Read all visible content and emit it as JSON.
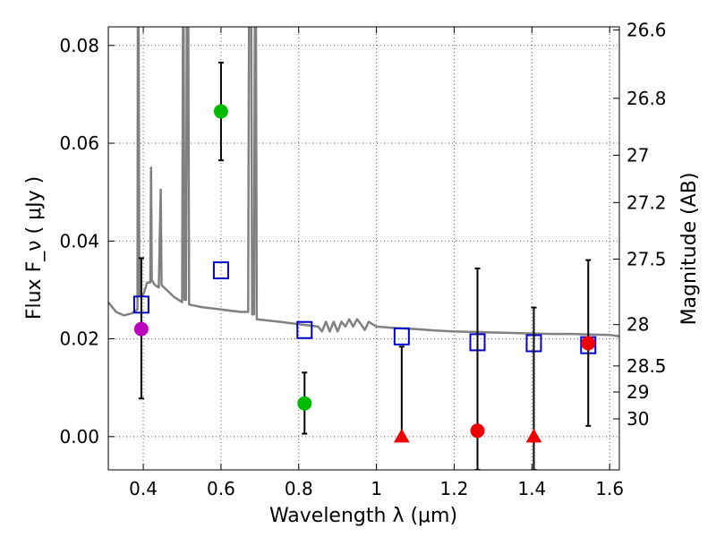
{
  "chart_data": {
    "type": "scatter",
    "xlabel": "Wavelength  λ (μm)",
    "ylabel": "Flux  F_ν  ( μJy )",
    "ylabel_right": "Magnitude (AB)",
    "xlim": [
      0.31,
      1.625
    ],
    "ylim": [
      -0.0068,
      0.0838
    ],
    "xticks": [
      0.4,
      0.6,
      0.8,
      1.0,
      1.2,
      1.4,
      1.6
    ],
    "xtick_labels": [
      "0.4",
      "0.6",
      "0.8",
      "1",
      "1.2",
      "1.4",
      "1.6"
    ],
    "yticks": [
      0.0,
      0.02,
      0.04,
      0.06,
      0.08
    ],
    "ytick_labels": [
      "0.00",
      "0.02",
      "0.04",
      "0.06",
      "0.08"
    ],
    "right_ticks": [
      {
        "label": "26.6",
        "mag": 26.6
      },
      {
        "label": "26.8",
        "mag": 26.8
      },
      {
        "label": "27",
        "mag": 27.0
      },
      {
        "label": "27.2",
        "mag": 27.2
      },
      {
        "label": "27.5",
        "mag": 27.5
      },
      {
        "label": "28",
        "mag": 28.0
      },
      {
        "label": "28.5",
        "mag": 28.5
      },
      {
        "label": "29",
        "mag": 29.0
      },
      {
        "label": "30",
        "mag": 30.0
      }
    ],
    "grid": true,
    "colors": {
      "sed": "#808080",
      "model": "#0000cc",
      "green": "#00bb00",
      "magenta": "#bb00bb",
      "red": "#ee0000",
      "error": "#000000",
      "grid": "#555555"
    },
    "sed_model": [
      [
        0.31,
        0.0275
      ],
      [
        0.33,
        0.0255
      ],
      [
        0.35,
        0.0248
      ],
      [
        0.37,
        0.0252
      ],
      [
        0.385,
        0.026
      ],
      [
        0.386,
        0.0838
      ],
      [
        0.388,
        0.0838
      ],
      [
        0.39,
        0.029
      ],
      [
        0.4,
        0.029
      ],
      [
        0.41,
        0.0315
      ],
      [
        0.418,
        0.0315
      ],
      [
        0.42,
        0.055
      ],
      [
        0.422,
        0.032
      ],
      [
        0.43,
        0.031
      ],
      [
        0.44,
        0.0305
      ],
      [
        0.445,
        0.0505
      ],
      [
        0.447,
        0.031
      ],
      [
        0.46,
        0.03
      ],
      [
        0.48,
        0.0285
      ],
      [
        0.5,
        0.0275
      ],
      [
        0.502,
        0.0838
      ],
      [
        0.504,
        0.0838
      ],
      [
        0.506,
        0.028
      ],
      [
        0.51,
        0.028
      ],
      [
        0.512,
        0.0838
      ],
      [
        0.516,
        0.0838
      ],
      [
        0.518,
        0.027
      ],
      [
        0.55,
        0.0265
      ],
      [
        0.6,
        0.026
      ],
      [
        0.65,
        0.0255
      ],
      [
        0.67,
        0.0255
      ],
      [
        0.672,
        0.0838
      ],
      [
        0.678,
        0.0838
      ],
      [
        0.68,
        0.025
      ],
      [
        0.685,
        0.025
      ],
      [
        0.687,
        0.0838
      ],
      [
        0.69,
        0.0838
      ],
      [
        0.692,
        0.024
      ],
      [
        0.75,
        0.0235
      ],
      [
        0.8,
        0.023
      ],
      [
        0.85,
        0.0225
      ],
      [
        0.86,
        0.0215
      ],
      [
        0.87,
        0.0235
      ],
      [
        0.88,
        0.0215
      ],
      [
        0.89,
        0.0235
      ],
      [
        0.9,
        0.0215
      ],
      [
        0.91,
        0.0235
      ],
      [
        0.92,
        0.0225
      ],
      [
        0.93,
        0.024
      ],
      [
        0.94,
        0.0225
      ],
      [
        0.95,
        0.024
      ],
      [
        0.96,
        0.023
      ],
      [
        0.97,
        0.0218
      ],
      [
        0.98,
        0.0235
      ],
      [
        1.0,
        0.0225
      ],
      [
        1.05,
        0.0222
      ],
      [
        1.1,
        0.022
      ],
      [
        1.15,
        0.0217
      ],
      [
        1.2,
        0.0215
      ],
      [
        1.25,
        0.0214
      ],
      [
        1.3,
        0.0213
      ],
      [
        1.35,
        0.0212
      ],
      [
        1.4,
        0.0211
      ],
      [
        1.45,
        0.021
      ],
      [
        1.5,
        0.021
      ],
      [
        1.55,
        0.0209
      ],
      [
        1.6,
        0.0208
      ],
      [
        1.625,
        0.0205
      ]
    ],
    "model_photometry": [
      {
        "x": 0.395,
        "y": 0.027
      },
      {
        "x": 0.6,
        "y": 0.034
      },
      {
        "x": 0.815,
        "y": 0.0218
      },
      {
        "x": 1.065,
        "y": 0.0205
      },
      {
        "x": 1.26,
        "y": 0.0193
      },
      {
        "x": 1.405,
        "y": 0.0191
      },
      {
        "x": 1.545,
        "y": 0.0187
      }
    ],
    "observed": [
      {
        "x": 0.395,
        "y": 0.022,
        "ylo": 0.0078,
        "yhi": 0.0365,
        "color": "magenta",
        "marker": "circle"
      },
      {
        "x": 0.6,
        "y": 0.0665,
        "ylo": 0.0565,
        "yhi": 0.0765,
        "color": "green",
        "marker": "circle"
      },
      {
        "x": 0.815,
        "y": 0.0068,
        "ylo": 0.0006,
        "yhi": 0.0131,
        "color": "green",
        "marker": "circle"
      },
      {
        "x": 1.065,
        "y": 0.0,
        "ylo": 0.0,
        "yhi": 0.0184,
        "color": "red",
        "marker": "triangle"
      },
      {
        "x": 1.26,
        "y": 0.0012,
        "ylo": -0.0068,
        "yhi": 0.0344,
        "color": "red",
        "marker": "circle"
      },
      {
        "x": 1.405,
        "y": 0.0,
        "ylo": -0.0068,
        "yhi": 0.0264,
        "color": "red",
        "marker": "triangle"
      },
      {
        "x": 1.545,
        "y": 0.0191,
        "ylo": 0.0022,
        "yhi": 0.0361,
        "color": "red",
        "marker": "circle"
      }
    ]
  }
}
